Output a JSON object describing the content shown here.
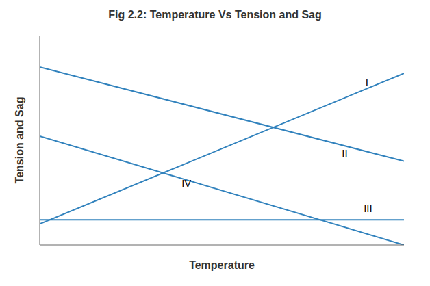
{
  "chart_data": {
    "type": "line",
    "title": "Fig 2.2:  Temperature Vs Tension and Sag",
    "xlabel": "Temperature",
    "ylabel": "Tension and Sag",
    "x": [
      0.0,
      1.0
    ],
    "series": [
      {
        "name": "I",
        "values": [
          0.1,
          0.82
        ]
      },
      {
        "name": "II",
        "values": [
          0.85,
          0.4
        ]
      },
      {
        "name": "III",
        "values": [
          0.12,
          0.12
        ]
      },
      {
        "name": "IV",
        "values": [
          0.52,
          0.0
        ]
      }
    ],
    "annotations": [
      {
        "text": "I",
        "x": 0.885,
        "y": 0.78
      },
      {
        "text": "II",
        "x": 0.82,
        "y": 0.44
      },
      {
        "text": "III",
        "x": 0.88,
        "y": 0.175
      },
      {
        "text": "IV",
        "x": 0.38,
        "y": 0.295
      }
    ],
    "xlim": [
      0,
      1
    ],
    "ylim": [
      0,
      1
    ],
    "tick_labels": false,
    "grid": false
  }
}
